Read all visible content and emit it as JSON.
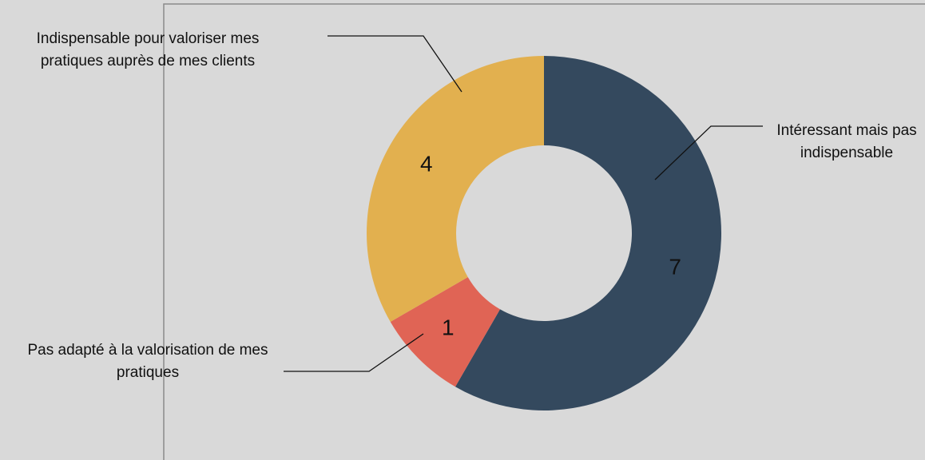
{
  "chart_data": {
    "type": "donut",
    "categories": [
      "Intéressant mais pas indispensable",
      "Pas adapté à la valorisation de mes pratiques",
      "Indispensable pour valoriser mes pratiques auprès de mes clients"
    ],
    "values": [
      7,
      1,
      4
    ],
    "colors": [
      "#34495e",
      "#e06455",
      "#e2b04f"
    ]
  }
}
